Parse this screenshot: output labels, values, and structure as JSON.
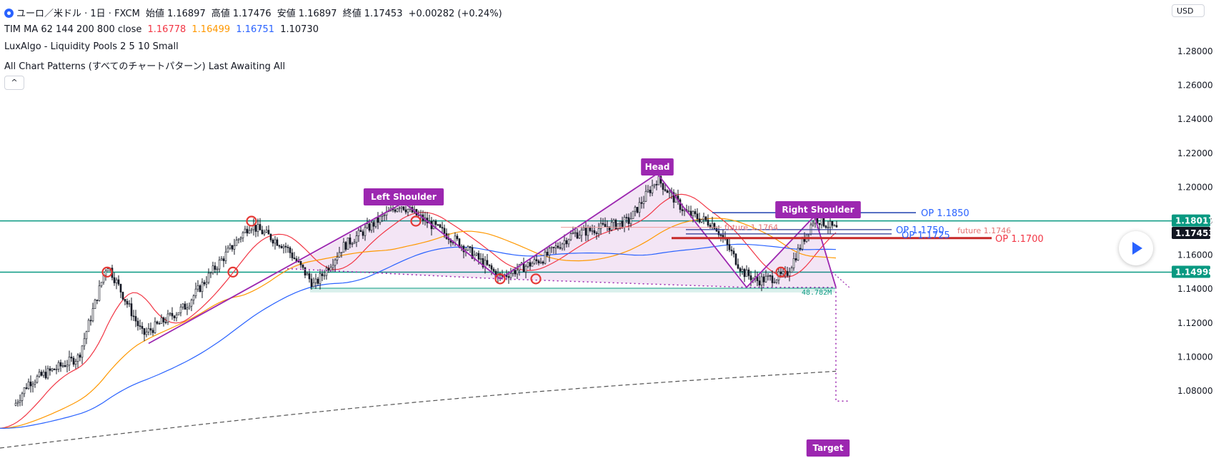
{
  "header": {
    "symbol": "ユーロ／米ドル · 1日 · FXCM",
    "ohlc": [
      {
        "label": "始値",
        "value": "1.16897"
      },
      {
        "label": "高値",
        "value": "1.17476"
      },
      {
        "label": "安値",
        "value": "1.16897"
      },
      {
        "label": "終値",
        "value": "1.17453"
      }
    ],
    "change": "+0.00282 (+0.24%)"
  },
  "indicators": {
    "ma": {
      "label": "TIM MA 62 144 200 800 close",
      "v1": "1.16778",
      "v2": "1.16499",
      "v3": "1.16751",
      "v4": "1.10730"
    },
    "luxalgo": "LuxAlgo - Liquidity Pools 2 5 10 Small",
    "patterns": "All Chart Patterns (すべてのチャートパターン) Last Awaiting All"
  },
  "collapse_icon": "chevron-up-icon",
  "currency": "USD",
  "play_icon": "play-icon",
  "axis": {
    "ticks": [
      "1.28000",
      "1.26000",
      "1.24000",
      "1.22000",
      "1.20000",
      "1.18000",
      "1.16000",
      "1.14000",
      "1.12000",
      "1.10000",
      "1.08000"
    ],
    "badges": [
      {
        "label": "1.18017",
        "color": "#089981"
      },
      {
        "label": "1.17453",
        "color": "#131722"
      },
      {
        "label": "1.14998",
        "color": "#089981"
      }
    ]
  },
  "pattern_labels": {
    "left_shoulder": "Left Shoulder",
    "head": "Head",
    "right_shoulder": "Right Shoulder",
    "target": "Target",
    "measure": "48.782M"
  },
  "op_labels": {
    "op1850": "OP 1.1850",
    "op1750": "OP 1.1750",
    "op1725": "OP 1.1725",
    "op1700": "OP 1.1700",
    "future1764": "future 1.1764",
    "future1746": "future 1.1746"
  },
  "colors": {
    "up": "#131722",
    "down": "#131722",
    "ma62": "#f23645",
    "ma144": "#ff9800",
    "ma200": "#2962ff",
    "ma800": "#555555",
    "pattern": "#9c27b0",
    "support": "#089981"
  }
}
